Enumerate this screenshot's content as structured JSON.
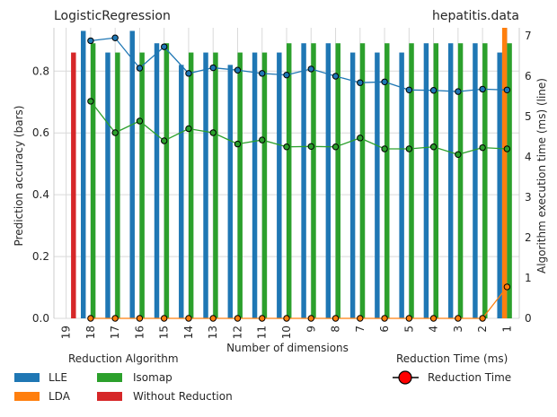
{
  "chart_data": {
    "type": "bar",
    "title_left": "LogisticRegression",
    "title_right": "hepatitis.data",
    "xlabel": "Number of dimensions",
    "ylabel_left": "Prediction accuracy (bars)",
    "ylabel_right": "Algorithm execution time (ms) (line)",
    "categories": [
      "19",
      "18",
      "17",
      "16",
      "15",
      "14",
      "13",
      "12",
      "11",
      "10",
      "9",
      "8",
      "7",
      "6",
      "5",
      "4",
      "3",
      "2",
      "1"
    ],
    "ylim_left": [
      0,
      0.94
    ],
    "ylim_right": [
      0,
      7.2
    ],
    "yticks_left": [
      "0.0",
      "0.2",
      "0.4",
      "0.6",
      "0.8"
    ],
    "yticks_right": [
      "0",
      "1",
      "2",
      "3",
      "4",
      "5",
      "6",
      "7"
    ],
    "grid": true,
    "bar_series": [
      {
        "name": "LLE",
        "color": "#1f77b4",
        "values": [
          null,
          0.93,
          0.86,
          0.93,
          0.89,
          0.82,
          0.86,
          0.82,
          0.86,
          0.86,
          0.89,
          0.89,
          0.86,
          0.86,
          0.86,
          0.89,
          0.89,
          0.89,
          0.86
        ]
      },
      {
        "name": "LDA",
        "color": "#ff7f0e",
        "values": [
          null,
          null,
          null,
          null,
          null,
          null,
          null,
          null,
          null,
          null,
          null,
          null,
          null,
          null,
          null,
          null,
          null,
          null,
          0.97
        ]
      },
      {
        "name": "Isomap",
        "color": "#2ca02c",
        "values": [
          null,
          0.89,
          0.86,
          0.86,
          0.89,
          0.86,
          0.86,
          0.86,
          0.86,
          0.89,
          0.89,
          0.89,
          0.89,
          0.89,
          0.89,
          0.89,
          0.89,
          0.89,
          0.89
        ]
      },
      {
        "name": "Without Reduction",
        "color": "#d62728",
        "values": [
          0.86,
          null,
          null,
          null,
          null,
          null,
          null,
          null,
          null,
          null,
          null,
          null,
          null,
          null,
          null,
          null,
          null,
          null,
          null
        ]
      }
    ],
    "line_series": [
      {
        "name": "LLE",
        "color": "#1f77b4",
        "values": [
          null,
          6.88,
          6.95,
          6.2,
          6.73,
          6.07,
          6.21,
          6.15,
          6.07,
          6.03,
          6.18,
          6.0,
          5.84,
          5.86,
          5.66,
          5.65,
          5.62,
          5.68,
          5.66
        ]
      },
      {
        "name": "LDA",
        "color": "#ff7f0e",
        "values": [
          null,
          0,
          0,
          0,
          0,
          0,
          0,
          0,
          0,
          0,
          0,
          0,
          0,
          0,
          0,
          0,
          0,
          0,
          0.78
        ]
      },
      {
        "name": "Isomap",
        "color": "#2ca02c",
        "values": [
          null,
          5.38,
          4.6,
          4.89,
          4.4,
          4.7,
          4.6,
          4.32,
          4.42,
          4.25,
          4.26,
          4.25,
          4.47,
          4.2,
          4.2,
          4.25,
          4.06,
          4.23,
          4.2
        ]
      }
    ],
    "legend_left_title": "Reduction Algorithm",
    "legend_left_items": [
      "LLE",
      "LDA",
      "Isomap",
      "Without Reduction"
    ],
    "legend_right_title": "Reduction Time (ms)",
    "legend_right_item": "Reduction Time"
  }
}
